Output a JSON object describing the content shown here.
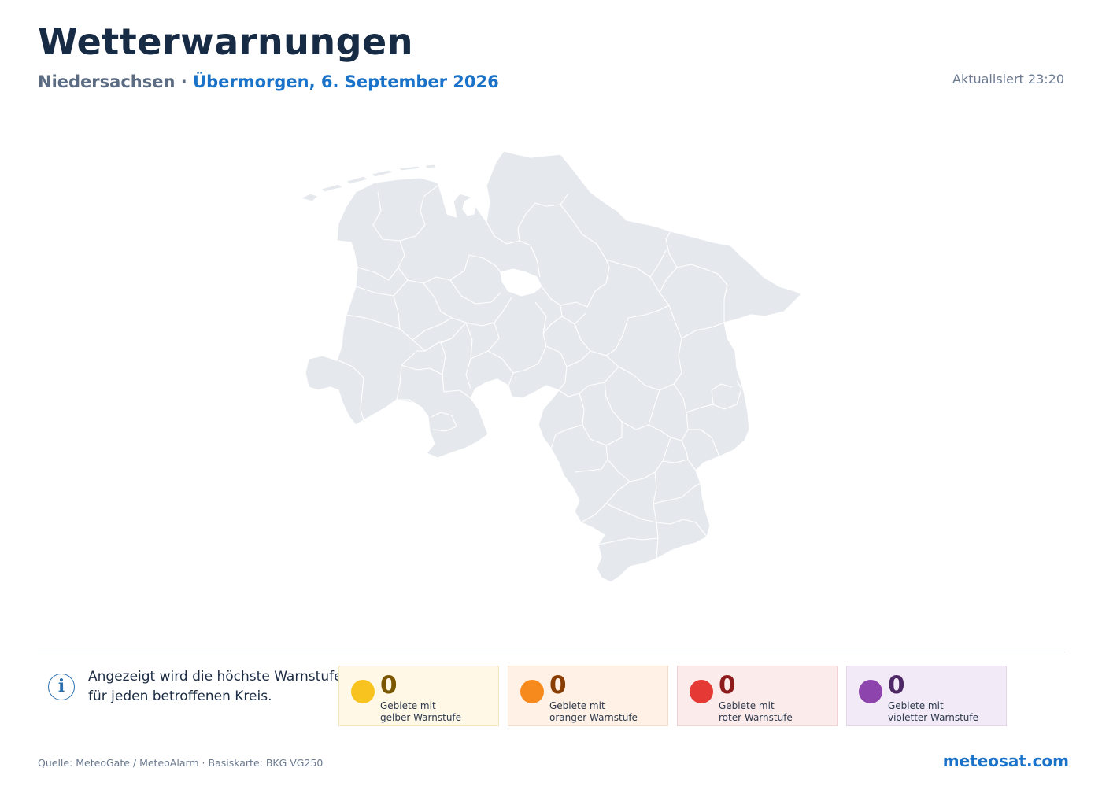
{
  "header": {
    "title": "Wetterwarnungen",
    "region": "Niedersachsen",
    "separator": "·",
    "date": "Übermorgen, 6. September 2026",
    "updated": "Aktualisiert 23:20"
  },
  "map": {
    "fill_color": "#e5e8ed",
    "border_color": "#ffffff"
  },
  "info": {
    "icon": "info-icon",
    "glyph": "i",
    "text_line1": "Angezeigt wird die höchste Warnstufe",
    "text_line2": "für jeden betroffenen Kreis."
  },
  "summary": [
    {
      "level": "yellow",
      "color": "#f9c31f",
      "count": "0",
      "label_line1": "Gebiete mit",
      "label_line2": "gelber Warnstufe"
    },
    {
      "level": "orange",
      "color": "#f78a1d",
      "count": "0",
      "label_line1": "Gebiete mit",
      "label_line2": "oranger Warnstufe"
    },
    {
      "level": "red",
      "color": "#e53935",
      "count": "0",
      "label_line1": "Gebiete mit",
      "label_line2": "roter Warnstufe"
    },
    {
      "level": "violet",
      "color": "#8e44ad",
      "count": "0",
      "label_line1": "Gebiete mit",
      "label_line2": "violetter Warnstufe"
    }
  ],
  "footer": {
    "source": "Quelle: MeteoGate / MeteoAlarm · Basiskarte: BKG VG250",
    "brand": "meteosat.com"
  }
}
